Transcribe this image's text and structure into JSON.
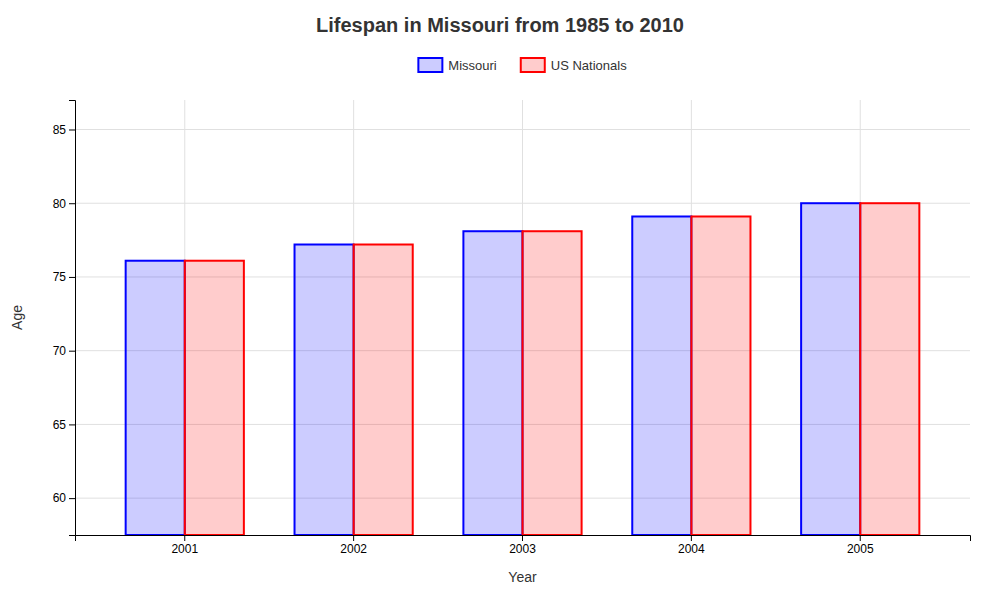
{
  "chart_data": {
    "type": "bar",
    "title": "Lifespan in Missouri from 1985 to 2010",
    "xlabel": "Year",
    "ylabel": "Age",
    "categories": [
      "2001",
      "2002",
      "2003",
      "2004",
      "2005"
    ],
    "series": [
      {
        "name": "Missouri",
        "color": "#0000ff",
        "values": [
          76.1,
          77.2,
          78.1,
          79.1,
          80.0
        ]
      },
      {
        "name": "US Nationals",
        "color": "#ff0000",
        "values": [
          76.1,
          77.2,
          78.1,
          79.1,
          80.0
        ]
      }
    ],
    "ylim": [
      57.5,
      87
    ],
    "yticks": [
      60,
      65,
      70,
      75,
      80,
      85
    ],
    "grid": true,
    "legend": "top"
  }
}
